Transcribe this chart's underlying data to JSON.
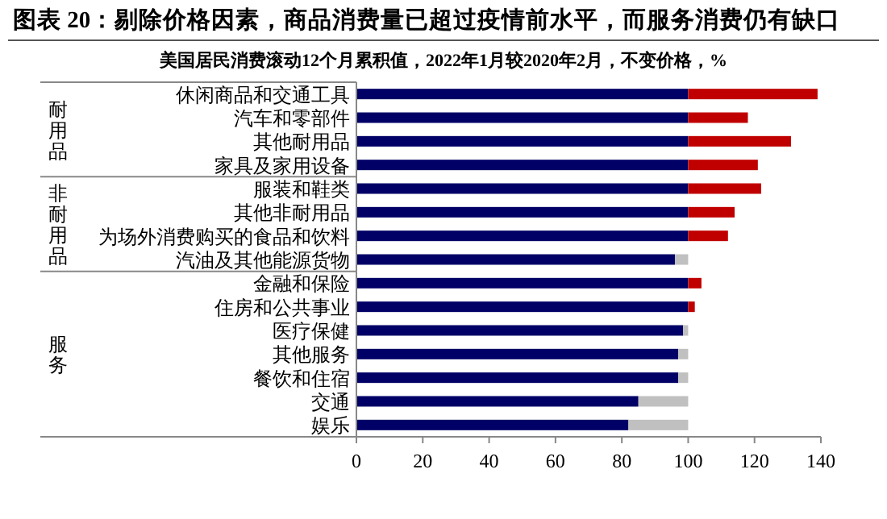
{
  "chart_data": {
    "type": "bar",
    "orientation": "horizontal",
    "stacked": true,
    "title": "图表 20：剔除价格因素，商品消费量已超过疫情前水平，而服务消费仍有缺口",
    "subtitle": "美国居民消费滚动12个月累积值，2022年1月较2020年2月，不变价格，%",
    "categories": [
      "休闲商品和交通工具",
      "汽车和零部件",
      "其他耐用品",
      "家具及家用设备",
      "服装和鞋类",
      "其他非耐用品",
      "为场外消费购买的食品和饮料",
      "汽油及其他能源货物",
      "金融和保险",
      "住房和公共事业",
      "医疗保健",
      "其他服务",
      "餐饮和住宿",
      "交通",
      "娱乐"
    ],
    "series": [
      {
        "color": "#000066",
        "values": [
          100,
          100,
          100,
          100,
          100,
          100,
          100,
          96,
          100,
          100,
          98.5,
          97,
          97,
          85,
          82
        ]
      },
      {
        "color": "#c00000",
        "values": [
          39,
          18,
          31,
          21,
          22,
          14,
          12,
          null,
          4,
          2,
          null,
          null,
          null,
          null,
          null
        ]
      },
      {
        "color": "#c0c0c0",
        "values": [
          null,
          null,
          null,
          null,
          null,
          null,
          null,
          4,
          null,
          null,
          1.5,
          3,
          3,
          15,
          18
        ]
      }
    ],
    "xlim": [
      0,
      140
    ],
    "xticks": [
      0,
      20,
      40,
      60,
      80,
      100,
      120,
      140
    ],
    "grid": false,
    "annotations": [
      "耐用品",
      "非耐用品",
      "服务"
    ]
  }
}
